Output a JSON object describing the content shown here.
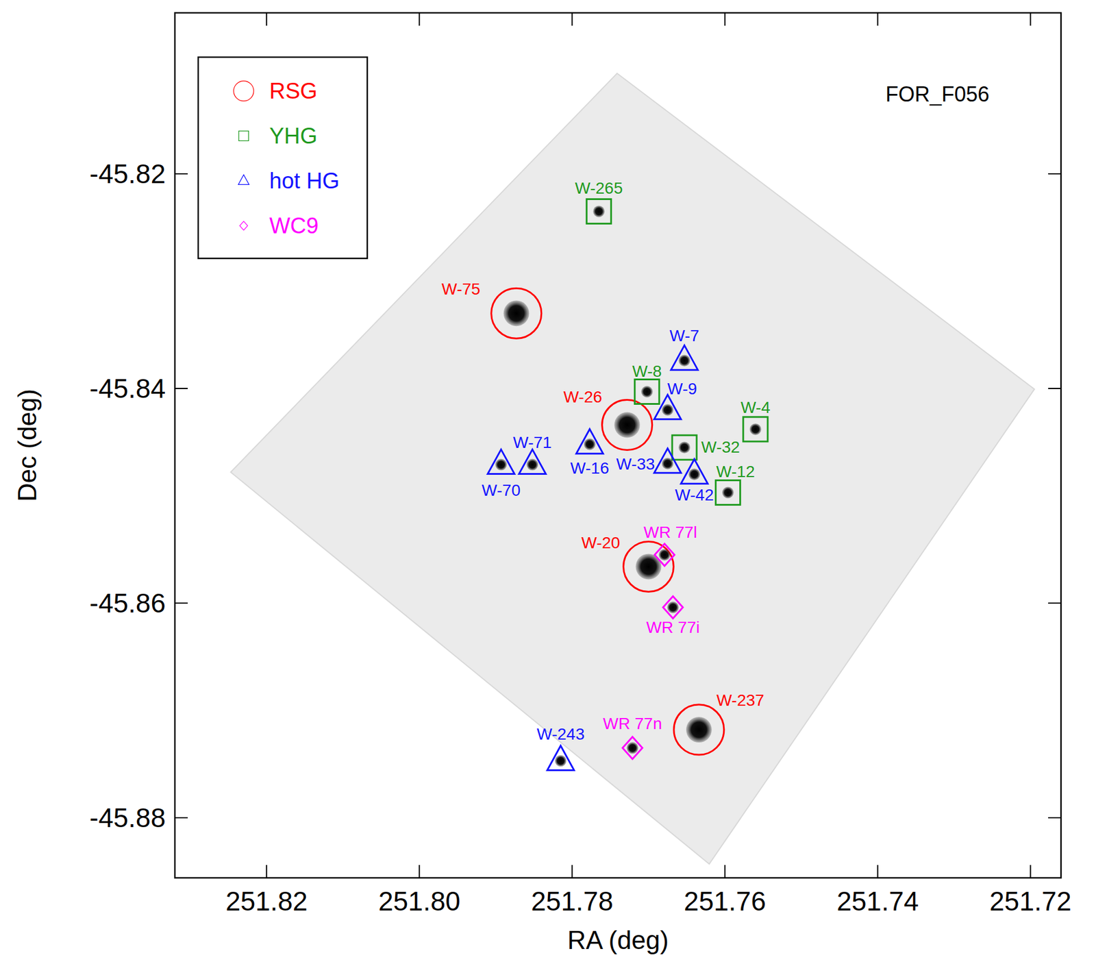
{
  "chart_data": {
    "type": "scatter",
    "title": "FOR_F056",
    "xlabel": "RA (deg)",
    "ylabel": "Dec (deg)",
    "xlim": [
      251.832,
      251.716
    ],
    "ylim": [
      -45.8856,
      -45.805
    ],
    "xticks": [
      251.82,
      {
        "value": 251.8,
        "label": "251.80"
      },
      251.78,
      251.76,
      251.74,
      251.72
    ],
    "yticks": [
      -45.82,
      -45.84,
      -45.86,
      -45.88
    ],
    "legend": "upper left",
    "series": [
      {
        "name": "RSG",
        "color": "#ff0000",
        "marker": "circle",
        "x": [
          251.7873,
          251.7728,
          251.77,
          251.7634
        ],
        "y": [
          -45.833,
          -45.8434,
          -45.8566,
          -45.8718
        ],
        "labels": [
          "W-75",
          "W-26",
          "W-20",
          "W-237"
        ]
      },
      {
        "name": "YHG",
        "color": "#1f9a1f",
        "marker": "square",
        "x": [
          251.7765,
          251.7702,
          251.7653,
          251.756,
          251.7596
        ],
        "y": [
          -45.8235,
          -45.8403,
          -45.8455,
          -45.8438,
          -45.8497
        ],
        "labels": [
          "W-265",
          "W-8",
          "W-32",
          "W-4",
          "W-12"
        ]
      },
      {
        "name": "hot HG",
        "color": "#1414ff",
        "marker": "triangle",
        "x": [
          251.7653,
          251.7675,
          251.7777,
          251.7852,
          251.7893,
          251.7675,
          251.764,
          251.7815
        ],
        "y": [
          -45.8374,
          -45.842,
          -45.8452,
          -45.8471,
          -45.8471,
          -45.847,
          -45.848,
          -45.8747
        ],
        "labels": [
          "W-7",
          "W-9",
          "W-16",
          "W-71",
          "W-70",
          "W-33",
          "W-42",
          "W-243"
        ]
      },
      {
        "name": "WC9",
        "color": "#ff00ff",
        "marker": "diamond",
        "x": [
          251.7679,
          251.7668,
          251.7721
        ],
        "y": [
          -45.8555,
          -45.8604,
          -45.8735
        ],
        "labels": [
          "WR 77l",
          "WR 77i",
          "WR 77n"
        ]
      }
    ]
  }
}
